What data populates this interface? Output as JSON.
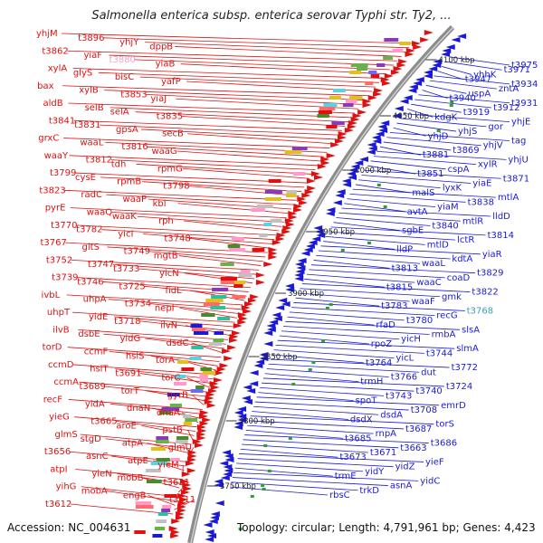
{
  "title": "Salmonella enterica subsp. enterica serovar Typhi str. Ty2, ...",
  "footer": {
    "accession": "Accession: NC_004631",
    "summary": "Topology: circular; Length: 4,791,961 bp; Genes: 4,423"
  },
  "colors": {
    "forward_strand": "#e01010",
    "reverse_strand": "#1a1ad6",
    "backbone": "#888888",
    "kbp_marker": "#2f9e2f",
    "pale_label": "#e8a8c8",
    "cyan_label": "#3aa0b0"
  },
  "kbp_labels": [
    {
      "text": "4100 kbp"
    },
    {
      "text": "4050 kbp"
    },
    {
      "text": "4000 kbp"
    },
    {
      "text": "3950 kbp"
    },
    {
      "text": "3900 kbp"
    },
    {
      "text": "3850 kbp"
    },
    {
      "text": "3800 kbp"
    },
    {
      "text": "3750 kbp"
    }
  ],
  "left_genes": [
    "yhjM",
    "t3896",
    "yhjY",
    "dppB",
    "t3862",
    "yiaF",
    "t3880",
    "yiaB",
    "xylA",
    "glyS",
    "bisC",
    "yafP",
    "bax",
    "xylB",
    "t3853",
    "yiaJ",
    "aldB",
    "selB",
    "selA",
    "t3835",
    "t3841",
    "t3831",
    "gpsA",
    "secB",
    "grxC",
    "waaL",
    "t3816",
    "waaG",
    "waaY",
    "t3812",
    "tdh",
    "rpmG",
    "t3799",
    "cysE",
    "rpmB",
    "t3798",
    "t3823",
    "radC",
    "waaP",
    "kbl",
    "pyrE",
    "waaQ",
    "waaK",
    "rph",
    "t3770",
    "t3782",
    "yicI",
    "t3748",
    "t3767",
    "gltS",
    "t3749",
    "mgtB",
    "t3752",
    "t3747",
    "t3733",
    "yicN",
    "t3739",
    "t3746",
    "t3725",
    "fidL",
    "ivbL",
    "uhpA",
    "t3734",
    "nepI",
    "uhpT",
    "yidE",
    "t3718",
    "ilvN",
    "ilvB",
    "dsbE",
    "yidG",
    "dsdC",
    "torD",
    "ccmF",
    "hslS",
    "torA",
    "ccmD",
    "hslT",
    "t3691",
    "torC",
    "ccmA",
    "t3689",
    "torT",
    "gyrB",
    "recF",
    "yidA",
    "dnaN",
    "dnaA",
    "yieG",
    "t3665",
    "aroE",
    "pstB",
    "glmS",
    "stgD",
    "atpA",
    "glmU",
    "t3656",
    "asnC",
    "atpE",
    "yieM",
    "atpI",
    "yieN",
    "mobB",
    "t3631",
    "yihG",
    "mobA",
    "engB",
    "t3611",
    "t3612"
  ],
  "right_genes": [
    "t3975",
    "t3971",
    "yhhK",
    "t3947",
    "t3934",
    "zntA",
    "uspA",
    "t3940",
    "t3931",
    "t3912",
    "t3919",
    "kdgK",
    "yhjE",
    "gor",
    "yhjS",
    "yhjD",
    "tag",
    "yhjV",
    "t3869",
    "t3881",
    "yhjU",
    "xylR",
    "cspA",
    "t3851",
    "t3871",
    "yiaE",
    "lyxK",
    "malS",
    "mtlA",
    "t3838",
    "yiaM",
    "avtA",
    "lldD",
    "mtlR",
    "t3840",
    "sgbE",
    "t3814",
    "lctR",
    "mtlD",
    "lldP",
    "yiaR",
    "kdtA",
    "waaL",
    "t3813",
    "t3829",
    "coaD",
    "waaC",
    "t3815",
    "t3822",
    "gmk",
    "waaF",
    "t3783",
    "t3768",
    "recG",
    "t3780",
    "rfaD",
    "slsA",
    "rmbA",
    "yicH",
    "rpoZ",
    "slmA",
    "t3744",
    "yicL",
    "t3764",
    "t3772",
    "dut",
    "t3766",
    "trmH",
    "t3724",
    "t3740",
    "t3743",
    "spoT",
    "emrD",
    "t3708",
    "dsdA",
    "dsdX",
    "torS",
    "t3687",
    "rnpA",
    "t3685",
    "t3686",
    "t3663",
    "t3671",
    "t3673",
    "yieF",
    "yidZ",
    "yidY",
    "trmE",
    "yidC",
    "asnA",
    "trkD",
    "rbsC"
  ]
}
